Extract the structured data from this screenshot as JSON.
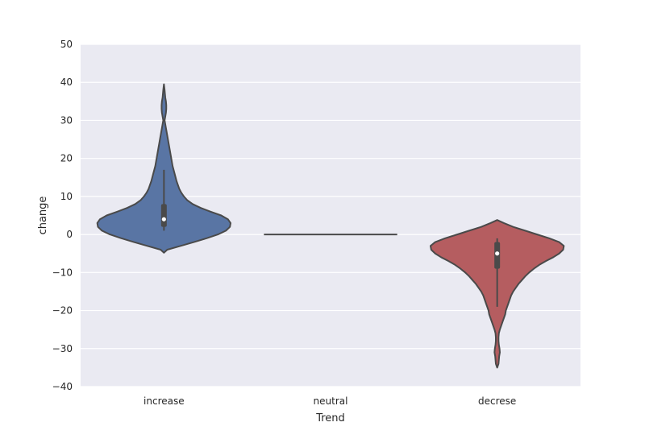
{
  "chart_data": {
    "type": "violin",
    "title": "",
    "xlabel": "Trend",
    "ylabel": "change",
    "ylim": [
      -40,
      50
    ],
    "yticks": [
      -40,
      -30,
      -20,
      -10,
      0,
      10,
      20,
      30,
      40,
      50
    ],
    "ytick_labels": [
      "−40",
      "−30",
      "−20",
      "−10",
      "0",
      "10",
      "20",
      "30",
      "40",
      "50"
    ],
    "grid": true,
    "legend": "none",
    "categories": [
      "increase",
      "neutral",
      "decrese"
    ],
    "colors": {
      "increase": "#5975a4",
      "neutral": "#5f9e6e",
      "decrese": "#b55d60",
      "outline": "#4a4a4a",
      "background": "#eaeaf2",
      "grid": "#ffffff"
    },
    "violins": [
      {
        "category": "increase",
        "min": -4.8,
        "max": 39.5,
        "q1": 2.0,
        "median": 4.0,
        "q3": 8.0,
        "whisker_low": 1.0,
        "whisker_high": 17.0,
        "density": [
          [
            -4.8,
            0.0
          ],
          [
            -4.0,
            0.05
          ],
          [
            -3.0,
            0.25
          ],
          [
            -2.0,
            0.45
          ],
          [
            -1.0,
            0.64
          ],
          [
            0.0,
            0.81
          ],
          [
            1.0,
            0.93
          ],
          [
            2.0,
            0.99
          ],
          [
            3.0,
            1.0
          ],
          [
            4.0,
            0.96
          ],
          [
            5.0,
            0.86
          ],
          [
            6.0,
            0.7
          ],
          [
            7.0,
            0.55
          ],
          [
            8.0,
            0.43
          ],
          [
            9.0,
            0.35
          ],
          [
            10.0,
            0.3
          ],
          [
            11.0,
            0.26
          ],
          [
            12.0,
            0.23
          ],
          [
            13.0,
            0.21
          ],
          [
            14.0,
            0.19
          ],
          [
            16.0,
            0.16
          ],
          [
            18.0,
            0.13
          ],
          [
            20.0,
            0.11
          ],
          [
            22.0,
            0.09
          ],
          [
            24.0,
            0.07
          ],
          [
            26.0,
            0.05
          ],
          [
            28.0,
            0.03
          ],
          [
            30.0,
            0.01
          ],
          [
            31.0,
            0.02
          ],
          [
            32.0,
            0.03
          ],
          [
            33.0,
            0.035
          ],
          [
            34.0,
            0.035
          ],
          [
            35.0,
            0.03
          ],
          [
            36.0,
            0.02
          ],
          [
            38.0,
            0.01
          ],
          [
            39.5,
            0.0
          ]
        ]
      },
      {
        "category": "neutral",
        "min": 0,
        "max": 0,
        "flat_value": 0,
        "density": []
      },
      {
        "category": "decrese",
        "min": -35.0,
        "max": 3.8,
        "q1": -9.0,
        "median": -5.0,
        "q3": -2.0,
        "whisker_low": -19.0,
        "whisker_high": -1.0,
        "density": [
          [
            -35.0,
            0.0
          ],
          [
            -34.0,
            0.02
          ],
          [
            -32.0,
            0.03
          ],
          [
            -31.0,
            0.04
          ],
          [
            -30.0,
            0.035
          ],
          [
            -29.0,
            0.025
          ],
          [
            -28.0,
            0.02
          ],
          [
            -27.0,
            0.02
          ],
          [
            -26.0,
            0.025
          ],
          [
            -25.0,
            0.04
          ],
          [
            -24.0,
            0.06
          ],
          [
            -23.0,
            0.08
          ],
          [
            -22.0,
            0.1
          ],
          [
            -21.0,
            0.12
          ],
          [
            -20.0,
            0.13
          ],
          [
            -19.0,
            0.15
          ],
          [
            -18.0,
            0.17
          ],
          [
            -17.0,
            0.19
          ],
          [
            -16.0,
            0.21
          ],
          [
            -15.0,
            0.24
          ],
          [
            -14.0,
            0.28
          ],
          [
            -13.0,
            0.32
          ],
          [
            -12.0,
            0.37
          ],
          [
            -11.0,
            0.42
          ],
          [
            -10.0,
            0.48
          ],
          [
            -9.0,
            0.55
          ],
          [
            -8.0,
            0.63
          ],
          [
            -7.0,
            0.73
          ],
          [
            -6.0,
            0.84
          ],
          [
            -5.0,
            0.93
          ],
          [
            -4.0,
            0.99
          ],
          [
            -3.0,
            1.0
          ],
          [
            -2.0,
            0.93
          ],
          [
            -1.0,
            0.78
          ],
          [
            0.0,
            0.6
          ],
          [
            1.0,
            0.42
          ],
          [
            2.0,
            0.24
          ],
          [
            3.0,
            0.1
          ],
          [
            3.8,
            0.0
          ]
        ]
      }
    ]
  }
}
